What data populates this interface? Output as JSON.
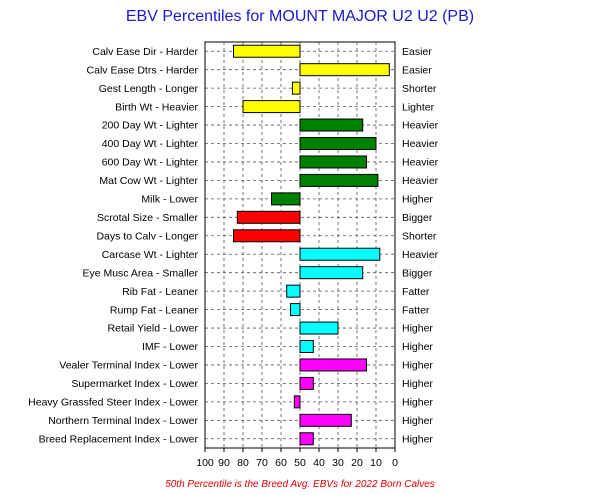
{
  "chart_data": {
    "type": "bar",
    "orientation": "horizontal",
    "title": "EBV Percentiles for MOUNT MAJOR U2 U2 (PB)",
    "footnote": "50th Percentile is the Breed Avg. EBVs for 2022 Born Calves",
    "xlim": [
      100,
      0
    ],
    "baseline": 50,
    "x_ticks": [
      100,
      90,
      80,
      70,
      60,
      50,
      40,
      30,
      20,
      10,
      0
    ],
    "grid": true,
    "colors": {
      "yellow": "#ffff00",
      "green": "#008000",
      "red": "#ff0000",
      "cyan": "#00ffff",
      "magenta": "#ff00ff"
    },
    "rows": [
      {
        "left": "Calv Ease Dir - Harder",
        "right": "Easier",
        "value": 85,
        "color": "yellow"
      },
      {
        "left": "Calv Ease Dtrs - Harder",
        "right": "Easier",
        "value": 3,
        "color": "yellow"
      },
      {
        "left": "Gest Length - Longer",
        "right": "Shorter",
        "value": 54,
        "color": "yellow"
      },
      {
        "left": "Birth Wt - Heavier",
        "right": "Lighter",
        "value": 80,
        "color": "yellow"
      },
      {
        "left": "200 Day Wt - Lighter",
        "right": "Heavier",
        "value": 17,
        "color": "green"
      },
      {
        "left": "400 Day Wt - Lighter",
        "right": "Heavier",
        "value": 10,
        "color": "green"
      },
      {
        "left": "600 Day Wt - Lighter",
        "right": "Heavier",
        "value": 15,
        "color": "green"
      },
      {
        "left": "Mat Cow Wt - Lighter",
        "right": "Heavier",
        "value": 9,
        "color": "green"
      },
      {
        "left": "Milk - Lower",
        "right": "Higher",
        "value": 65,
        "color": "green"
      },
      {
        "left": "Scrotal Size - Smaller",
        "right": "Bigger",
        "value": 83,
        "color": "red"
      },
      {
        "left": "Days to Calv - Longer",
        "right": "Shorter",
        "value": 85,
        "color": "red"
      },
      {
        "left": "Carcase Wt - Lighter",
        "right": "Heavier",
        "value": 8,
        "color": "cyan"
      },
      {
        "left": "Eye Musc Area - Smaller",
        "right": "Bigger",
        "value": 17,
        "color": "cyan"
      },
      {
        "left": "Rib Fat - Leaner",
        "right": "Fatter",
        "value": 57,
        "color": "cyan"
      },
      {
        "left": "Rump Fat - Leaner",
        "right": "Fatter",
        "value": 55,
        "color": "cyan"
      },
      {
        "left": "Retail Yield - Lower",
        "right": "Higher",
        "value": 30,
        "color": "cyan"
      },
      {
        "left": "IMF - Lower",
        "right": "Higher",
        "value": 43,
        "color": "cyan"
      },
      {
        "left": "Vealer Terminal Index - Lower",
        "right": "Higher",
        "value": 15,
        "color": "magenta"
      },
      {
        "left": "Supermarket Index - Lower",
        "right": "Higher",
        "value": 43,
        "color": "magenta"
      },
      {
        "left": "Heavy Grassfed Steer Index - Lower",
        "right": "Higher",
        "value": 53,
        "color": "magenta"
      },
      {
        "left": "Northern Terminal Index - Lower",
        "right": "Higher",
        "value": 23,
        "color": "magenta"
      },
      {
        "left": "Breed Replacement Index - Lower",
        "right": "Higher",
        "value": 43,
        "color": "magenta"
      }
    ]
  }
}
